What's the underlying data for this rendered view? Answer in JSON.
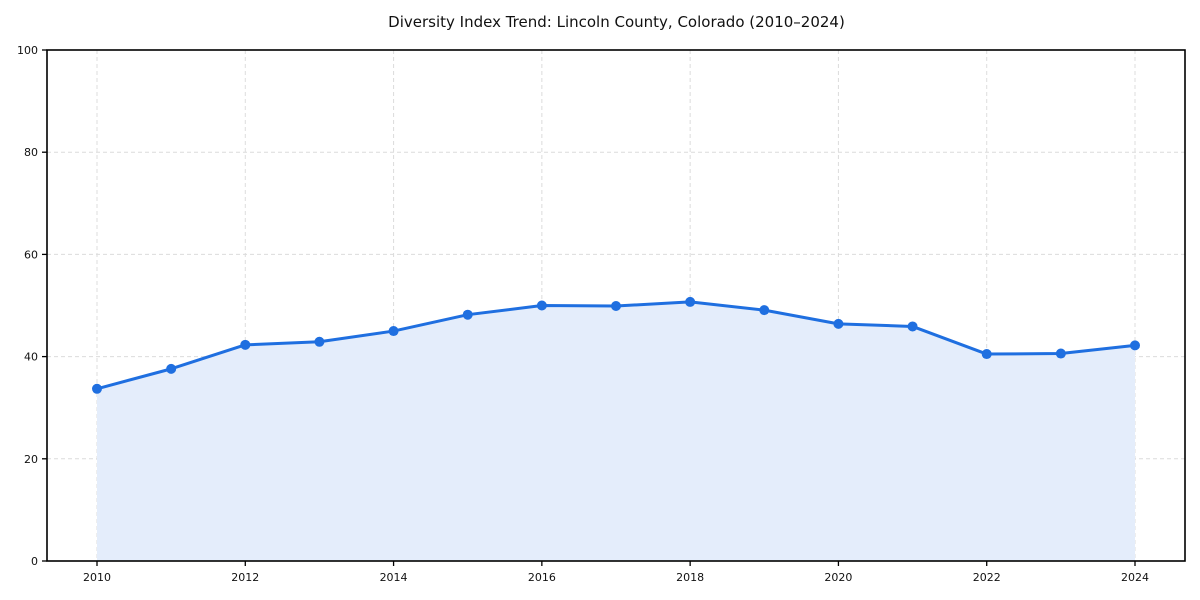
{
  "chart_data": {
    "type": "area",
    "title": "Diversity Index Trend: Lincoln County, Colorado (2010–2024)",
    "x": [
      2010,
      2011,
      2012,
      2013,
      2014,
      2015,
      2016,
      2017,
      2018,
      2019,
      2020,
      2021,
      2022,
      2023,
      2024
    ],
    "values": [
      33.7,
      37.6,
      42.3,
      42.9,
      45.0,
      48.2,
      50.0,
      49.9,
      50.7,
      49.1,
      46.4,
      45.9,
      40.5,
      40.6,
      42.2
    ],
    "xlabel": "",
    "ylabel": "",
    "xlim": [
      2009.3,
      2024.7
    ],
    "ylim": [
      0,
      100
    ],
    "xticks": [
      2010,
      2012,
      2014,
      2016,
      2018,
      2020,
      2022,
      2024
    ],
    "yticks": [
      0,
      20,
      40,
      60,
      80,
      100
    ],
    "grid": true,
    "legend": false,
    "colors": {
      "line": "#1f6fe0",
      "marker": "#1f6fe0",
      "fill": "#e4edfb",
      "grid": "#dcdcdc",
      "spine": "#000000",
      "text": "#111111",
      "background": "#ffffff"
    }
  }
}
